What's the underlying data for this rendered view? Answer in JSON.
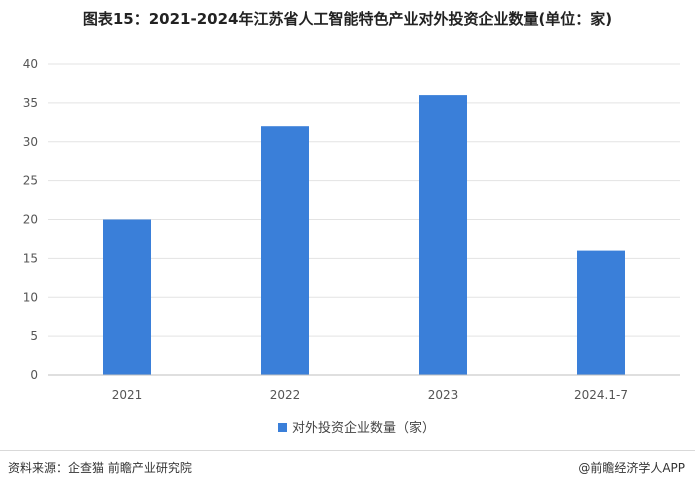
{
  "header": {
    "title": "图表15：2021-2024年江苏省人工智能特色产业对外投资企业数量(单位：家)"
  },
  "footer": {
    "source": "资料来源：企查猫 前瞻产业研究院",
    "brand": "@前瞻经济学人APP"
  },
  "chart_data": {
    "type": "bar",
    "title": "图表15：2021-2024年江苏省人工智能特色产业对外投资企业数量(单位：家)",
    "categories": [
      "2021",
      "2022",
      "2023",
      "2024.1-7"
    ],
    "series": [
      {
        "name": "对外投资企业数量（家）",
        "values": [
          20,
          32,
          36,
          16
        ],
        "color": "#3a7fd9"
      }
    ],
    "xlabel": "",
    "ylabel": "",
    "ylim": [
      0,
      40
    ],
    "yticks": [
      0,
      5,
      10,
      15,
      20,
      25,
      30,
      35,
      40
    ],
    "grid": true,
    "legend": "bottom-center"
  }
}
